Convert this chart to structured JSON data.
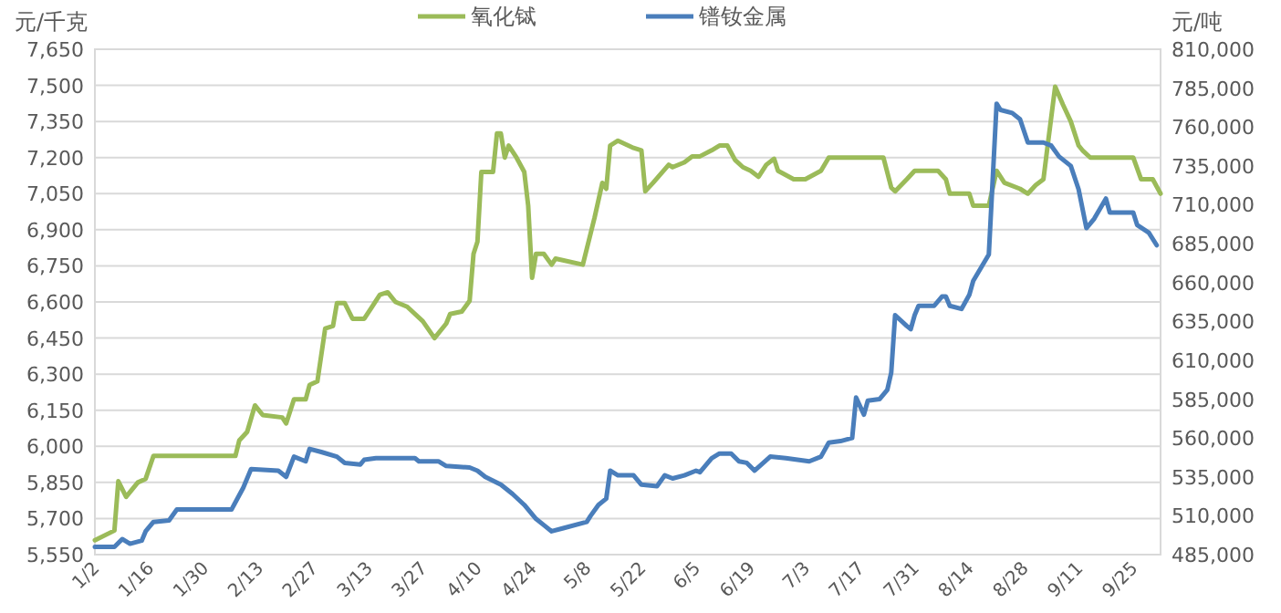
{
  "chart_data": {
    "type": "line",
    "ylabel": "元/千克",
    "y2label": "元/吨",
    "grid": "y",
    "legend": "top",
    "line_style": "solid",
    "xlim": [
      "--01-02",
      "--10-02"
    ],
    "xticks": [
      {
        "value": "--01-02",
        "label": "1/2"
      },
      {
        "value": "--01-16",
        "label": "1/16"
      },
      {
        "value": "--01-30",
        "label": "1/30"
      },
      {
        "value": "--02-13",
        "label": "2/13"
      },
      {
        "value": "--02-27",
        "label": "2/27"
      },
      {
        "value": "--03-13",
        "label": "3/13"
      },
      {
        "value": "--03-27",
        "label": "3/27"
      },
      {
        "value": "--04-10",
        "label": "4/10"
      },
      {
        "value": "--04-24",
        "label": "4/24"
      },
      {
        "value": "--05-08",
        "label": "5/8"
      },
      {
        "value": "--05-22",
        "label": "5/22"
      },
      {
        "value": "--06-05",
        "label": "6/5"
      },
      {
        "value": "--06-19",
        "label": "6/19"
      },
      {
        "value": "--07-03",
        "label": "7/3"
      },
      {
        "value": "--07-17",
        "label": "7/17"
      },
      {
        "value": "--07-31",
        "label": "7/31"
      },
      {
        "value": "--08-14",
        "label": "8/14"
      },
      {
        "value": "--08-28",
        "label": "8/28"
      },
      {
        "value": "--09-11",
        "label": "9/11"
      },
      {
        "value": "--09-25",
        "label": "9/25"
      }
    ],
    "ylim": [
      5550,
      7650
    ],
    "yticks": [
      {
        "value": 5550,
        "label": "5,550"
      },
      {
        "value": 5700,
        "label": "5,700"
      },
      {
        "value": 5850,
        "label": "5,850"
      },
      {
        "value": 6000,
        "label": "6,000"
      },
      {
        "value": 6150,
        "label": "6,150"
      },
      {
        "value": 6300,
        "label": "6,300"
      },
      {
        "value": 6450,
        "label": "6,450"
      },
      {
        "value": 6600,
        "label": "6,600"
      },
      {
        "value": 6750,
        "label": "6,750"
      },
      {
        "value": 6900,
        "label": "6,900"
      },
      {
        "value": 7050,
        "label": "7,050"
      },
      {
        "value": 7200,
        "label": "7,200"
      },
      {
        "value": 7350,
        "label": "7,350"
      },
      {
        "value": 7500,
        "label": "7,500"
      },
      {
        "value": 7650,
        "label": "7,650"
      }
    ],
    "y2lim": [
      485000,
      810000
    ],
    "y2ticks": [
      {
        "value": 485000,
        "label": "485,000"
      },
      {
        "value": 510000,
        "label": "510,000"
      },
      {
        "value": 535000,
        "label": "535,000"
      },
      {
        "value": 560000,
        "label": "560,000"
      },
      {
        "value": 585000,
        "label": "585,000"
      },
      {
        "value": 610000,
        "label": "610,000"
      },
      {
        "value": 635000,
        "label": "635,000"
      },
      {
        "value": 660000,
        "label": "660,000"
      },
      {
        "value": 685000,
        "label": "685,000"
      },
      {
        "value": 710000,
        "label": "710,000"
      },
      {
        "value": 735000,
        "label": "735,000"
      },
      {
        "value": 760000,
        "label": "760,000"
      },
      {
        "value": 785000,
        "label": "785,000"
      },
      {
        "value": 810000,
        "label": "810,000"
      }
    ],
    "series": [
      {
        "name": "氧化铽",
        "color": "#9bbb59",
        "x": [
          "--01-02",
          "--01-07",
          "--01-08",
          "--01-10",
          "--01-13",
          "--01-15",
          "--01-17",
          "--02-07",
          "--02-08",
          "--02-10",
          "--02-12",
          "--02-14",
          "--02-19",
          "--02-20",
          "--02-22",
          "--02-25",
          "--02-26",
          "--02-28",
          "--03-02",
          "--03-04",
          "--03-05",
          "--03-07",
          "--03-09",
          "--03-12",
          "--03-14",
          "--03-16",
          "--03-18",
          "--03-20",
          "--03-23",
          "--03-27",
          "--03-30",
          "--04-02",
          "--04-03",
          "--04-06",
          "--04-08",
          "--04-09",
          "--04-10",
          "--04-11",
          "--04-14",
          "--04-15",
          "--04-16",
          "--04-17",
          "--04-18",
          "--04-20",
          "--04-22",
          "--04-23",
          "--04-24",
          "--04-25",
          "--04-27",
          "--04-29",
          "--04-30",
          "--05-07",
          "--05-10",
          "--05-12",
          "--05-13",
          "--05-14",
          "--05-16",
          "--05-20",
          "--05-22",
          "--05-23",
          "--05-25",
          "--05-29",
          "--05-30",
          "--06-02",
          "--06-04",
          "--06-06",
          "--06-09",
          "--06-11",
          "--06-13",
          "--06-15",
          "--06-17",
          "--06-19",
          "--06-21",
          "--06-23",
          "--06-25",
          "--06-26",
          "--06-30",
          "--07-03",
          "--07-07",
          "--07-09",
          "--07-23",
          "--07-25",
          "--07-26",
          "--07-29",
          "--07-31",
          "--08-06",
          "--08-08",
          "--08-09",
          "--08-14",
          "--08-15",
          "--08-19",
          "--08-21",
          "--08-23",
          "--08-27",
          "--08-29",
          "--08-31",
          "--09-02",
          "--09-03",
          "--09-05",
          "--09-07",
          "--09-09",
          "--09-11",
          "--09-12",
          "--09-14",
          "--09-25",
          "--09-27",
          "--09-30",
          "--10-02"
        ],
        "values": [
          5610,
          5650,
          5855,
          5790,
          5850,
          5865,
          5960,
          5960,
          6025,
          6060,
          6170,
          6130,
          6120,
          6095,
          6195,
          6195,
          6255,
          6270,
          6490,
          6500,
          6595,
          6595,
          6530,
          6530,
          6580,
          6630,
          6640,
          6600,
          6580,
          6520,
          6450,
          6510,
          6550,
          6560,
          6605,
          6800,
          6850,
          7140,
          7140,
          7300,
          7300,
          7200,
          7250,
          7200,
          7140,
          7000,
          6700,
          6800,
          6800,
          6755,
          6780,
          6755,
          6950,
          7095,
          7070,
          7250,
          7270,
          7240,
          7230,
          7060,
          7095,
          7170,
          7160,
          7180,
          7205,
          7205,
          7230,
          7250,
          7250,
          7190,
          7160,
          7145,
          7120,
          7170,
          7195,
          7145,
          7110,
          7110,
          7145,
          7200,
          7200,
          7075,
          7060,
          7110,
          7145,
          7145,
          7110,
          7050,
          7050,
          7000,
          7000,
          7145,
          7095,
          7070,
          7050,
          7085,
          7110,
          7240,
          7495,
          7420,
          7350,
          7250,
          7230,
          7200,
          7200,
          7110,
          7110,
          7050
        ]
      },
      {
        "name": "镨钕金属",
        "color": "#4a7ebb",
        "axis": "y2",
        "x": [
          "--01-02",
          "--01-07",
          "--01-09",
          "--01-11",
          "--01-14",
          "--01-15",
          "--01-17",
          "--01-21",
          "--01-23",
          "--02-06",
          "--02-09",
          "--02-11",
          "--02-18",
          "--02-20",
          "--02-22",
          "--02-25",
          "--02-26",
          "--03-01",
          "--03-05",
          "--03-07",
          "--03-11",
          "--03-12",
          "--03-15",
          "--03-25",
          "--03-26",
          "--03-31",
          "--04-02",
          "--04-08",
          "--04-10",
          "--04-12",
          "--04-16",
          "--04-19",
          "--04-22",
          "--04-25",
          "--04-27",
          "--04-29",
          "--05-02",
          "--05-08",
          "--05-09",
          "--05-11",
          "--05-13",
          "--05-14",
          "--05-16",
          "--05-20",
          "--05-22",
          "--05-26",
          "--05-28",
          "--05-30",
          "--06-02",
          "--06-05",
          "--06-06",
          "--06-09",
          "--06-11",
          "--06-14",
          "--06-16",
          "--06-18",
          "--06-20",
          "--06-24",
          "--06-28",
          "--07-04",
          "--07-07",
          "--07-09",
          "--07-12",
          "--07-15",
          "--07-16",
          "--07-18",
          "--07-19",
          "--07-22",
          "--07-24",
          "--07-25",
          "--07-26",
          "--07-29",
          "--07-30",
          "--07-31",
          "--08-01",
          "--08-05",
          "--08-07",
          "--08-08",
          "--08-09",
          "--08-12",
          "--08-14",
          "--08-15",
          "--08-19",
          "--08-21",
          "--08-22",
          "--08-25",
          "--08-27",
          "--08-29",
          "--09-02",
          "--09-04",
          "--09-06",
          "--09-09",
          "--09-11",
          "--09-13",
          "--09-15",
          "--09-18",
          "--09-19",
          "--09-25",
          "--09-26",
          "--09-29",
          "--10-01"
        ],
        "values": [
          490000,
          490000,
          495000,
          492000,
          494000,
          500000,
          506000,
          507000,
          514000,
          514000,
          528000,
          540000,
          539000,
          535000,
          548000,
          545000,
          553000,
          551000,
          548000,
          544000,
          543000,
          546000,
          547000,
          547000,
          545000,
          545000,
          542000,
          541000,
          539000,
          535000,
          530000,
          524000,
          517000,
          508000,
          504000,
          500000,
          502000,
          506000,
          510000,
          517000,
          521000,
          539000,
          536000,
          536000,
          530000,
          529000,
          536000,
          534000,
          536000,
          539000,
          538000,
          547000,
          550000,
          550000,
          545000,
          544000,
          539000,
          548000,
          547000,
          545000,
          548000,
          557000,
          558000,
          560000,
          586000,
          575000,
          584000,
          585000,
          591000,
          602000,
          639000,
          632000,
          630000,
          639000,
          645000,
          645000,
          651000,
          651000,
          645000,
          643000,
          652000,
          661000,
          678000,
          775000,
          771000,
          769000,
          765000,
          750000,
          750000,
          748000,
          741000,
          735000,
          720000,
          695000,
          701000,
          714000,
          705000,
          705000,
          697000,
          692000,
          684000
        ]
      }
    ]
  }
}
